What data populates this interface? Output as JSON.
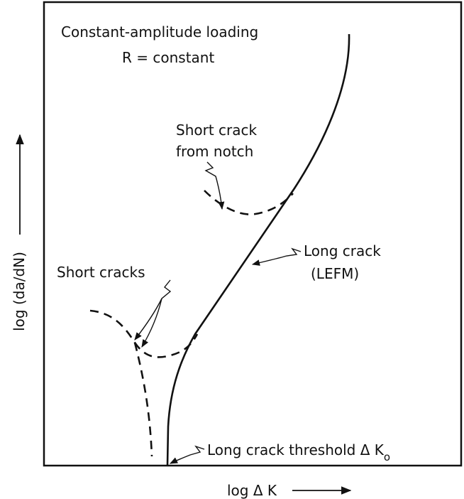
{
  "title": "Constant-amplitude loading",
  "subtitle": "R = constant",
  "y_axis_label": "log (da/dN)",
  "x_axis_label": "log Δ K",
  "annotations": {
    "notch": [
      "Short crack",
      "from notch"
    ],
    "long_crack": [
      "Long crack",
      "(LEFM)"
    ],
    "short_cracks": "Short cracks",
    "threshold": {
      "text": "Long crack threshold Δ K",
      "subscript": "o"
    }
  }
}
